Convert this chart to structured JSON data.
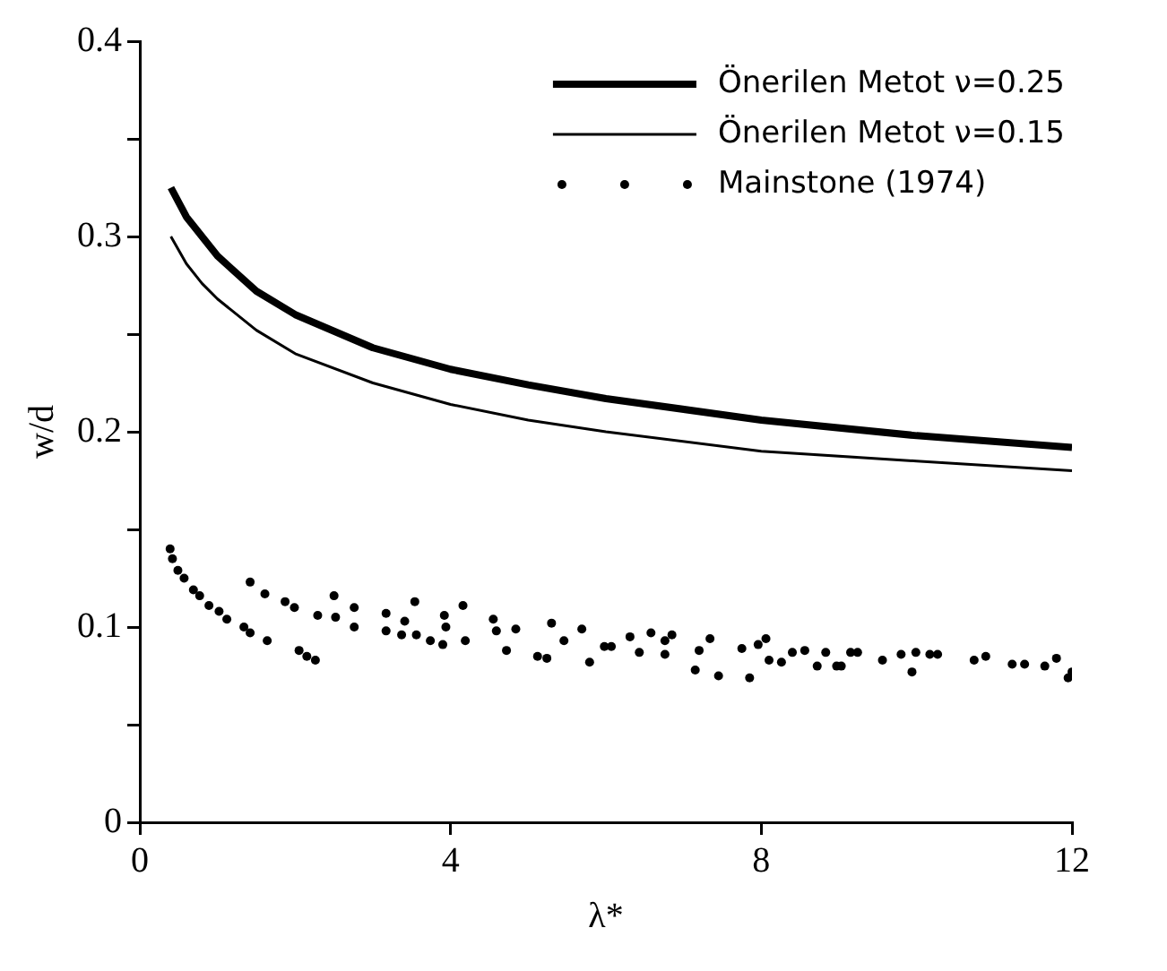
{
  "chart_data": {
    "type": "line",
    "xlabel": "λ*",
    "ylabel": "w/d",
    "xlim": [
      0,
      12
    ],
    "xticks": [
      0,
      4,
      8,
      12
    ],
    "ylim": [
      0,
      0.4
    ],
    "yticks": [
      0,
      {
        "value": 0.05,
        "label": null
      },
      0.1,
      {
        "value": 0.15,
        "label": null
      },
      0.2,
      {
        "value": 0.25,
        "label": null
      },
      0.3,
      {
        "value": 0.35,
        "label": null
      },
      0.4
    ],
    "grid": false,
    "legend": "top right",
    "series": [
      {
        "name": "Önerilen Metot ν=0.25",
        "color": "#000000",
        "marker": "none",
        "x": [
          0.4,
          0.6,
          0.8,
          1,
          1.5,
          2,
          3,
          4,
          5,
          6,
          8,
          10,
          12
        ],
        "values": [
          0.325,
          0.31,
          0.3,
          0.29,
          0.272,
          0.26,
          0.243,
          0.232,
          0.224,
          0.217,
          0.206,
          0.198,
          0.192
        ]
      },
      {
        "name": "Önerilen Metot ν=0.15",
        "color": "#000000",
        "marker": "none",
        "x": [
          0.4,
          0.6,
          0.8,
          1,
          1.5,
          2,
          3,
          4,
          5,
          6,
          8,
          10,
          12
        ],
        "values": [
          0.3,
          0.286,
          0.276,
          0.268,
          0.252,
          0.24,
          0.225,
          0.214,
          0.206,
          0.2,
          0.19,
          0.185,
          0.18
        ]
      },
      {
        "name": "Mainstone (1974)",
        "type": "scatter",
        "color": "#000000",
        "marker": "circle",
        "x": [
          0.39,
          0.42,
          0.49,
          0.57,
          0.69,
          0.77,
          0.89,
          1.02,
          1.12,
          1.34,
          1.42,
          1.64,
          1.42,
          1.61,
          1.87,
          1.99,
          2.05,
          2.15,
          2.26,
          2.29,
          2.5,
          2.52,
          2.76,
          2.76,
          3.17,
          3.17,
          3.37,
          3.41,
          3.54,
          3.56,
          3.74,
          3.9,
          3.92,
          3.94,
          4.16,
          4.19,
          4.55,
          4.59,
          4.72,
          4.84,
          5.12,
          5.24,
          5.3,
          5.46,
          5.69,
          5.79,
          5.98,
          6.07,
          6.31,
          6.43,
          6.58,
          6.76,
          6.76,
          6.85,
          7.15,
          7.2,
          7.34,
          7.45,
          7.75,
          7.85,
          7.96,
          8.06,
          8.1,
          8.26,
          8.4,
          8.56,
          8.72,
          8.83,
          8.97,
          9.03,
          9.15,
          9.24,
          9.56,
          9.8,
          9.94,
          9.99,
          10.17,
          10.27,
          10.74,
          10.89,
          11.23,
          11.39,
          11.65,
          11.8,
          11.95,
          12.0
        ],
        "values": [
          0.14,
          0.135,
          0.129,
          0.125,
          0.119,
          0.116,
          0.111,
          0.108,
          0.104,
          0.1,
          0.097,
          0.093,
          0.123,
          0.117,
          0.113,
          0.11,
          0.088,
          0.085,
          0.083,
          0.106,
          0.116,
          0.105,
          0.11,
          0.1,
          0.107,
          0.098,
          0.096,
          0.103,
          0.113,
          0.096,
          0.093,
          0.091,
          0.106,
          0.1,
          0.111,
          0.093,
          0.104,
          0.098,
          0.088,
          0.099,
          0.085,
          0.084,
          0.102,
          0.093,
          0.099,
          0.082,
          0.09,
          0.09,
          0.095,
          0.087,
          0.097,
          0.093,
          0.086,
          0.096,
          0.078,
          0.088,
          0.094,
          0.075,
          0.089,
          0.074,
          0.091,
          0.094,
          0.083,
          0.082,
          0.087,
          0.088,
          0.08,
          0.087,
          0.08,
          0.08,
          0.087,
          0.087,
          0.083,
          0.086,
          0.077,
          0.087,
          0.086,
          0.086,
          0.083,
          0.085,
          0.081,
          0.081,
          0.08,
          0.084,
          0.074,
          0.077
        ]
      }
    ]
  }
}
